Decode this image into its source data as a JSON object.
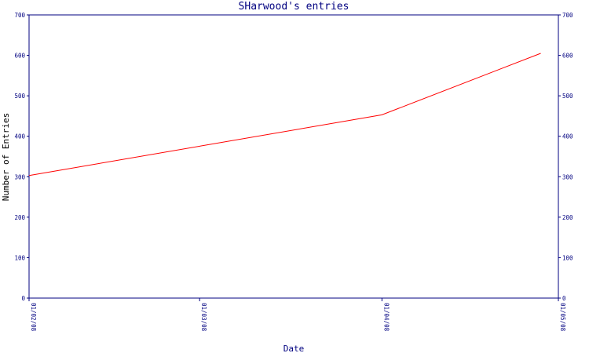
{
  "chart_data": {
    "type": "line",
    "title": "SHarwood's entries",
    "xlabel": "Date",
    "ylabel": "Number of Entries",
    "x_ticks": [
      "01/02/08",
      "01/03/08",
      "01/04/08",
      "01/05/08"
    ],
    "y_ticks": [
      "0",
      "100",
      "200",
      "300",
      "400",
      "500",
      "600",
      "700"
    ],
    "ylim": [
      0,
      700
    ],
    "xlim": [
      "2008-02-01",
      "2008-05-01"
    ],
    "grid": false,
    "series": [
      {
        "color": "#ff0000",
        "x": [
          "2008-02-01",
          "2008-04-01",
          "2008-04-28"
        ],
        "y": [
          303,
          453,
          605
        ]
      }
    ]
  },
  "colors": {
    "axis": "#000080",
    "background": "#ffffff"
  }
}
